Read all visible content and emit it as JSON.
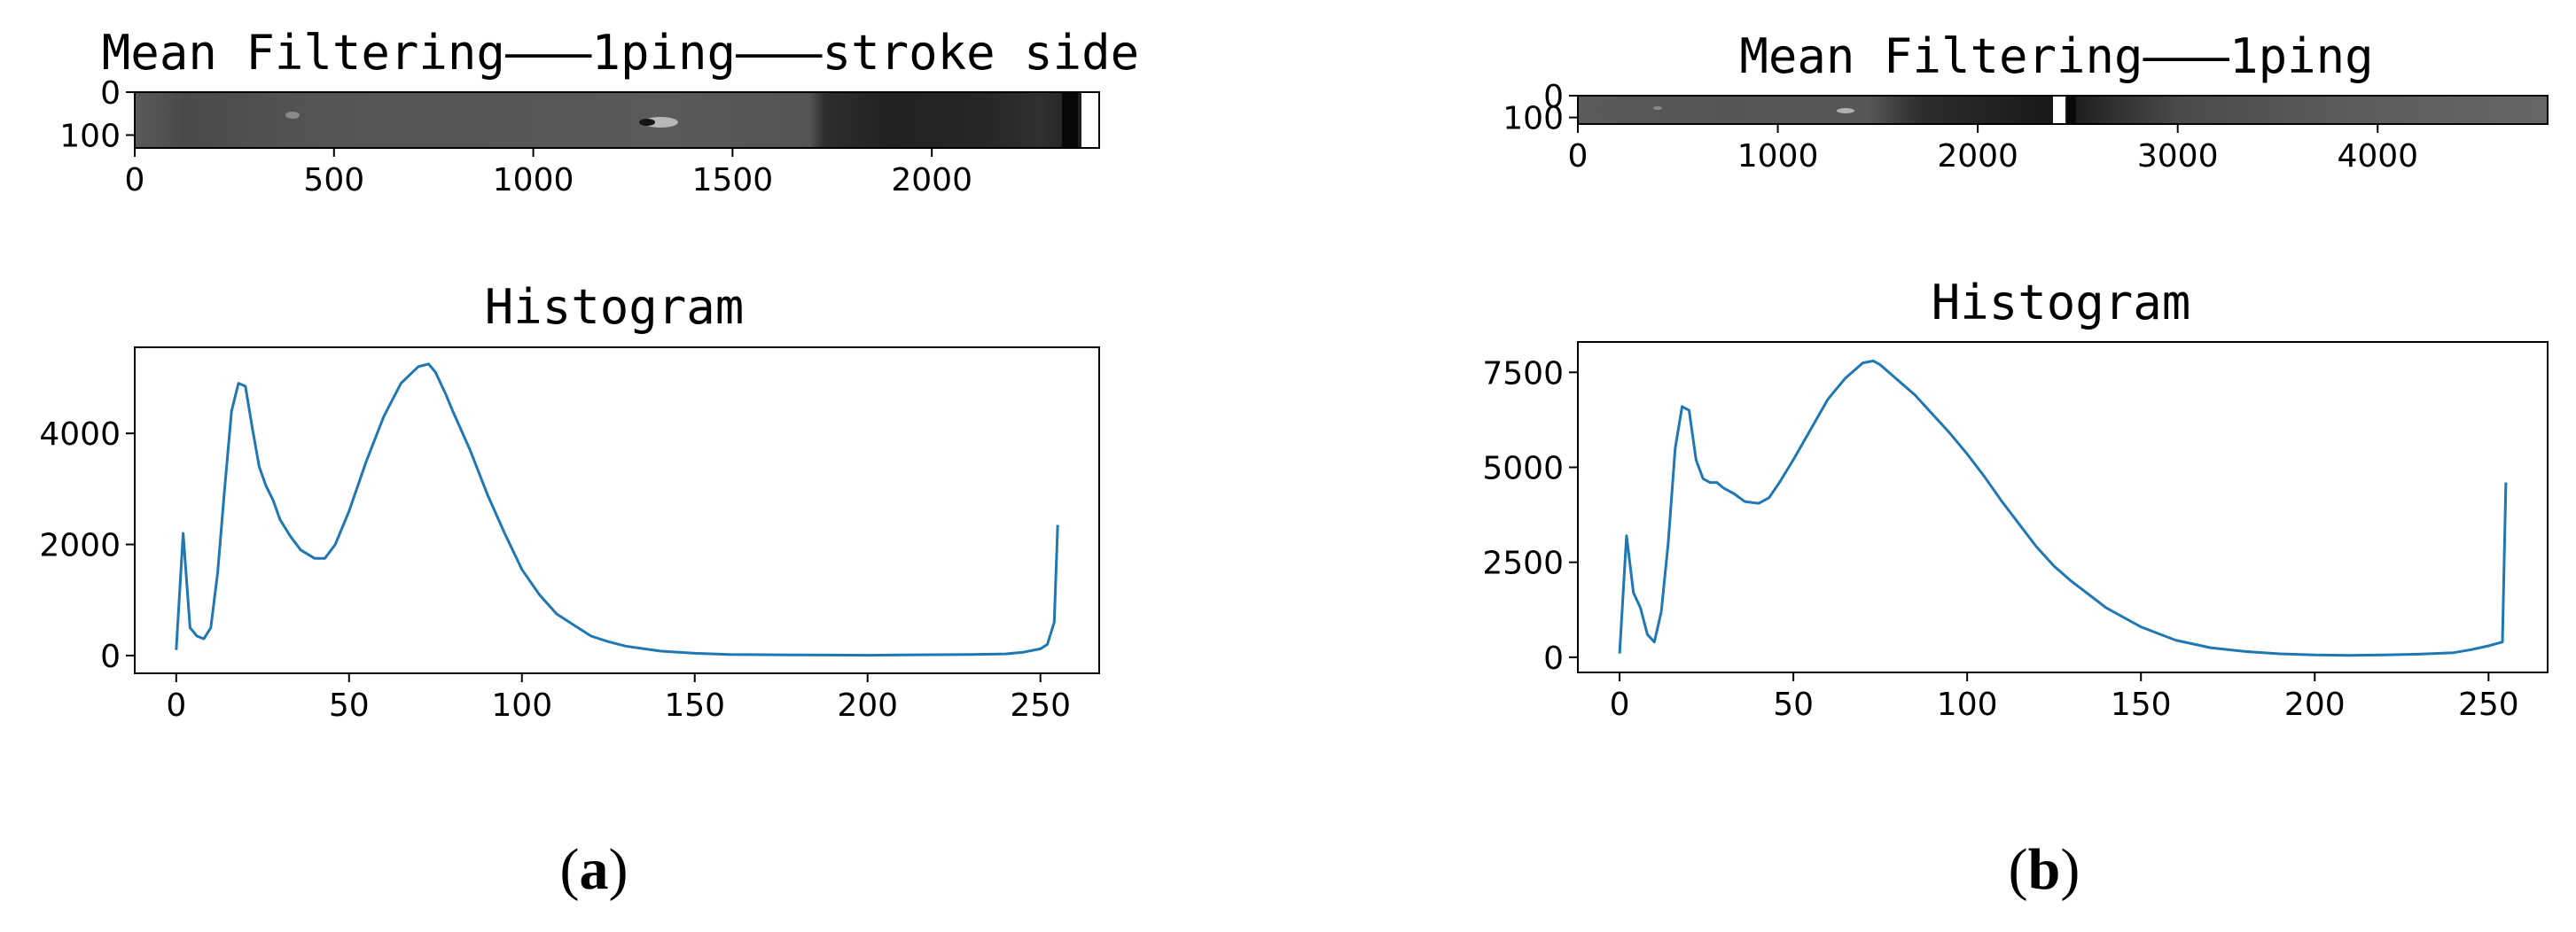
{
  "colors": {
    "line": "#1f77b4",
    "axis": "#000000",
    "background": "#ffffff"
  },
  "panels": [
    {
      "caption_open": "(",
      "caption_letter": "a",
      "caption_close": ")",
      "strip": {
        "title": "Mean Filtering———1ping———stroke side",
        "xlim": [
          0,
          2420
        ],
        "ylim": [
          0,
          130
        ],
        "xticks": [
          0,
          500,
          1000,
          1500,
          2000
        ],
        "yticks": [
          0,
          100
        ]
      },
      "hist": {
        "title": "Histogram",
        "xlim": [
          -12,
          267
        ],
        "ylim": [
          -320,
          5550
        ],
        "xticks": [
          0,
          50,
          100,
          150,
          200,
          250
        ],
        "yticks": [
          0,
          2000,
          4000
        ]
      }
    },
    {
      "caption_open": "(",
      "caption_letter": "b",
      "caption_close": ")",
      "strip": {
        "title": "Mean Filtering———1ping",
        "xlim": [
          0,
          4850
        ],
        "ylim": [
          0,
          130
        ],
        "xticks": [
          0,
          1000,
          2000,
          3000,
          4000
        ],
        "yticks": [
          0,
          100
        ]
      },
      "hist": {
        "title": "Histogram",
        "xlim": [
          -12,
          267
        ],
        "ylim": [
          -400,
          8300
        ],
        "xticks": [
          0,
          50,
          100,
          150,
          200,
          250
        ],
        "yticks": [
          0,
          2500,
          5000,
          7500
        ]
      }
    }
  ],
  "chart_data": [
    {
      "type": "heatmap",
      "title": "Mean Filtering———1ping———stroke side",
      "x_range": [
        0,
        2420
      ],
      "y_range": [
        0,
        130
      ],
      "description_values": "grayscale sonar strip"
    },
    {
      "type": "line",
      "title": "Histogram",
      "xlim": [
        -12,
        267
      ],
      "ylim": [
        -320,
        5550
      ],
      "series": [
        {
          "x": [
            0,
            2,
            4,
            6,
            8,
            10,
            12,
            14,
            16,
            18,
            20,
            22,
            24,
            26,
            28,
            30,
            33,
            36,
            40,
            43,
            46,
            50,
            55,
            60,
            65,
            70,
            73,
            75,
            78,
            80,
            85,
            90,
            95,
            100,
            105,
            110,
            115,
            120,
            125,
            130,
            140,
            150,
            160,
            170,
            180,
            190,
            200,
            210,
            220,
            230,
            240,
            245,
            250,
            252,
            254,
            255
          ],
          "y": [
            100,
            2200,
            500,
            350,
            300,
            500,
            1500,
            3000,
            4400,
            4900,
            4850,
            4100,
            3400,
            3050,
            2800,
            2450,
            2150,
            1900,
            1750,
            1750,
            2000,
            2600,
            3500,
            4300,
            4900,
            5200,
            5250,
            5100,
            4700,
            4400,
            3700,
            2900,
            2200,
            1550,
            1100,
            750,
            550,
            350,
            250,
            170,
            80,
            40,
            20,
            15,
            10,
            8,
            5,
            10,
            15,
            20,
            30,
            60,
            120,
            200,
            600,
            2350
          ]
        }
      ]
    },
    {
      "type": "heatmap",
      "title": "Mean Filtering———1ping",
      "x_range": [
        0,
        4850
      ],
      "y_range": [
        0,
        130
      ],
      "description_values": "grayscale sonar strip"
    },
    {
      "type": "line",
      "title": "Histogram",
      "xlim": [
        -12,
        267
      ],
      "ylim": [
        -400,
        8300
      ],
      "series": [
        {
          "x": [
            0,
            2,
            4,
            6,
            8,
            10,
            12,
            14,
            16,
            18,
            20,
            22,
            24,
            26,
            28,
            30,
            33,
            36,
            40,
            43,
            46,
            50,
            55,
            60,
            65,
            70,
            73,
            75,
            80,
            85,
            90,
            95,
            100,
            105,
            110,
            115,
            120,
            125,
            130,
            140,
            150,
            160,
            170,
            180,
            190,
            200,
            210,
            220,
            230,
            240,
            245,
            250,
            252,
            254,
            255
          ],
          "y": [
            100,
            3200,
            1700,
            1300,
            600,
            400,
            1200,
            3000,
            5500,
            6600,
            6500,
            5200,
            4700,
            4600,
            4600,
            4450,
            4300,
            4100,
            4050,
            4200,
            4600,
            5200,
            6000,
            6800,
            7350,
            7750,
            7800,
            7700,
            7300,
            6900,
            6400,
            5900,
            5350,
            4750,
            4100,
            3500,
            2900,
            2400,
            2000,
            1300,
            800,
            450,
            250,
            150,
            90,
            60,
            50,
            60,
            80,
            120,
            200,
            300,
            350,
            400,
            4600
          ]
        }
      ]
    }
  ]
}
